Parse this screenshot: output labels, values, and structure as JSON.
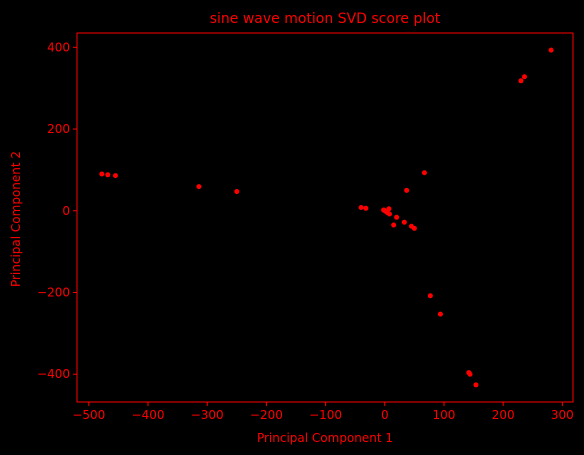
{
  "colors": {
    "background": "#000000",
    "foreground": "#ff0000"
  },
  "chart_data": {
    "type": "scatter",
    "title": "sine wave motion SVD score plot",
    "xlabel": "Principal Component 1",
    "ylabel": "Principal Component 2",
    "xlim": [
      -520,
      318
    ],
    "ylim": [
      -468,
      435
    ],
    "xticks": [
      -500,
      -400,
      -300,
      -200,
      -100,
      0,
      100,
      200,
      300
    ],
    "yticks": [
      -400,
      -200,
      0,
      200,
      400
    ],
    "grid": false,
    "legend": "none",
    "points": [
      {
        "x": -478,
        "y": 90
      },
      {
        "x": -468,
        "y": 88
      },
      {
        "x": -455,
        "y": 86
      },
      {
        "x": -314,
        "y": 59
      },
      {
        "x": -250,
        "y": 47
      },
      {
        "x": -40,
        "y": 8
      },
      {
        "x": -32,
        "y": 6
      },
      {
        "x": -2,
        "y": 2
      },
      {
        "x": 0,
        "y": 0
      },
      {
        "x": 3,
        "y": -3
      },
      {
        "x": 5,
        "y": -5
      },
      {
        "x": 7,
        "y": 5
      },
      {
        "x": 8,
        "y": -8
      },
      {
        "x": 15,
        "y": -35
      },
      {
        "x": 20,
        "y": -16
      },
      {
        "x": 33,
        "y": -28
      },
      {
        "x": 37,
        "y": 50
      },
      {
        "x": 45,
        "y": -38
      },
      {
        "x": 50,
        "y": -43
      },
      {
        "x": 67,
        "y": 93
      },
      {
        "x": 77,
        "y": -208
      },
      {
        "x": 94,
        "y": -253
      },
      {
        "x": 142,
        "y": -396
      },
      {
        "x": 144,
        "y": -400
      },
      {
        "x": 154,
        "y": -426
      },
      {
        "x": 230,
        "y": 318
      },
      {
        "x": 236,
        "y": 328
      },
      {
        "x": 281,
        "y": 393
      }
    ]
  }
}
